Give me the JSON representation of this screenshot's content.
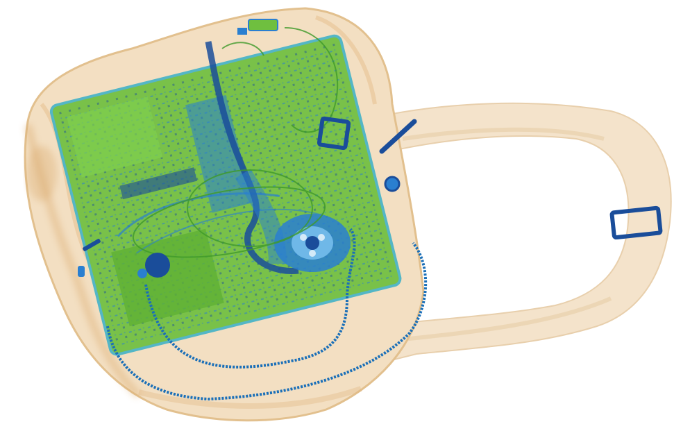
{
  "image": {
    "kind": "x-ray-baggage-scan",
    "background": "#ffffff",
    "palette": {
      "organic_light": "#f3dfc2",
      "organic_mid": "#e8c79a",
      "organic_dark": "#d9a86a",
      "mixed_green": "#6fbf3f",
      "mixed_green_dark": "#3f9a2a",
      "inorganic_blue": "#2a7fd0",
      "metal_dark_blue": "#1a4d9a",
      "cyan_edge": "#47b3c7"
    },
    "objects": [
      {
        "name": "bag-body",
        "material": "organic"
      },
      {
        "name": "shoulder-strap",
        "material": "organic"
      },
      {
        "name": "laptop-circuit-board",
        "material": "mixed"
      },
      {
        "name": "cooling-fan",
        "material": "metal"
      },
      {
        "name": "heat-pipe",
        "material": "metal"
      },
      {
        "name": "strap-buckle-left",
        "material": "metal"
      },
      {
        "name": "strap-buckle-right",
        "material": "metal"
      },
      {
        "name": "zipper-track",
        "material": "metal"
      },
      {
        "name": "usb-drive",
        "material": "mixed"
      },
      {
        "name": "cable-loop",
        "material": "mixed"
      },
      {
        "name": "metal-rod",
        "material": "metal"
      },
      {
        "name": "round-button",
        "material": "metal"
      }
    ]
  }
}
